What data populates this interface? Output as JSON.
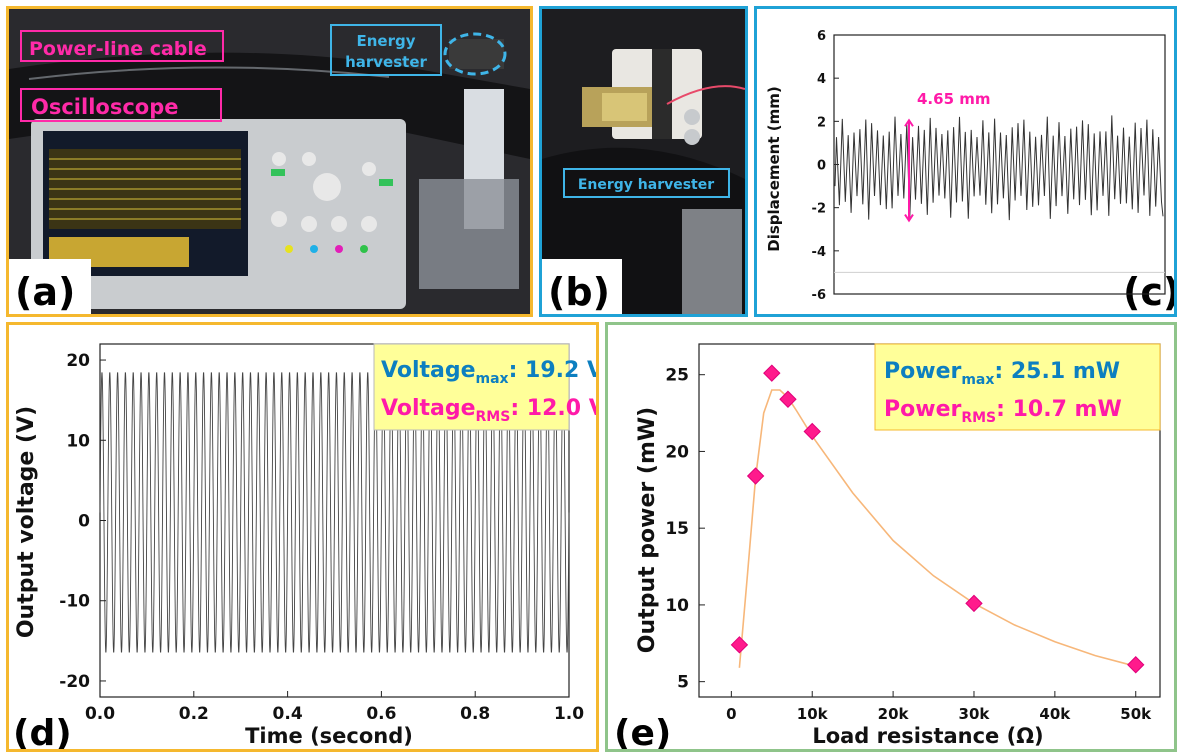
{
  "panels": {
    "a": {
      "letter": "(a)",
      "labels": {
        "cable": "Power-line cable",
        "scope": "Oscilloscope",
        "harvester": [
          "Energy",
          "harvester"
        ]
      }
    },
    "b": {
      "letter": "(b)",
      "labels": {
        "harvester": "Energy harvester"
      }
    },
    "c": {
      "letter": "(c)"
    },
    "d": {
      "letter": "(d)"
    },
    "e": {
      "letter": "(e)"
    }
  },
  "colors": {
    "accent_blue": "#0d7fc0",
    "accent_magenta": "#ff1aa8",
    "highlight": "#ffff99",
    "fit_orange": "#f7b77a",
    "marker": "#ff1a8c"
  },
  "chart_data": [
    {
      "id": "c",
      "type": "line",
      "ylabel": "Displacement (mm)",
      "xlabel": "",
      "ylim": [
        -6,
        6
      ],
      "yticks": [
        "6",
        "4",
        "2",
        "0",
        "-2",
        "-4",
        "-6"
      ],
      "annotation": "4.65 mm",
      "series": [
        {
          "amplitude_max": 2.3,
          "amplitude_min": -2.6,
          "peak_to_peak_marked": 4.65,
          "oscillation_count": 56
        }
      ]
    },
    {
      "id": "d",
      "type": "line",
      "xlabel": "Time (second)",
      "ylabel": "Output voltage (V)",
      "xlim": [
        0.0,
        1.0
      ],
      "ylim": [
        -22,
        22
      ],
      "xticks": [
        "0.0",
        "0.2",
        "0.4",
        "0.6",
        "0.8",
        "1.0"
      ],
      "yticks": [
        "20",
        "10",
        "0",
        "-10",
        "-20"
      ],
      "series": [
        {
          "frequency_hz": 60,
          "upper_envelope": 18.5,
          "lower_envelope": -16.5
        }
      ],
      "annotation": {
        "max": {
          "label": "Voltage",
          "sub": "max",
          "value": ": 19.2 V"
        },
        "rms": {
          "label": "Voltage",
          "sub": "RMS",
          "value": ": 12.0 V"
        }
      }
    },
    {
      "id": "e",
      "type": "scatter",
      "xlabel": "Load resistance (Ω)",
      "ylabel": "Output power (mW)",
      "xlim": [
        -4000,
        53000
      ],
      "ylim": [
        4,
        27
      ],
      "xticks": [
        "0",
        "10k",
        "20k",
        "30k",
        "40k",
        "50k"
      ],
      "yticks": [
        "25",
        "20",
        "15",
        "10",
        "5"
      ],
      "points": [
        {
          "x": 1000,
          "y": 7.4
        },
        {
          "x": 3000,
          "y": 18.4
        },
        {
          "x": 5000,
          "y": 25.1
        },
        {
          "x": 7000,
          "y": 23.4
        },
        {
          "x": 10000,
          "y": 21.3
        },
        {
          "x": 30000,
          "y": 10.1
        },
        {
          "x": 50000,
          "y": 6.1
        }
      ],
      "fit": [
        [
          1000,
          5.9
        ],
        [
          2000,
          12
        ],
        [
          3000,
          18.3
        ],
        [
          4000,
          22.5
        ],
        [
          5000,
          24.0
        ],
        [
          6000,
          24.0
        ],
        [
          7000,
          23.5
        ],
        [
          8000,
          22.7
        ],
        [
          10000,
          21.0
        ],
        [
          15000,
          17.3
        ],
        [
          20000,
          14.2
        ],
        [
          25000,
          11.9
        ],
        [
          30000,
          10.1
        ],
        [
          35000,
          8.7
        ],
        [
          40000,
          7.6
        ],
        [
          45000,
          6.7
        ],
        [
          50000,
          6.0
        ]
      ],
      "annotation": {
        "max": {
          "label": "Power",
          "sub": "max",
          "value": ": 25.1 mW"
        },
        "rms": {
          "label": "Power",
          "sub": "RMS",
          "value": ": 10.7 mW"
        }
      }
    }
  ]
}
